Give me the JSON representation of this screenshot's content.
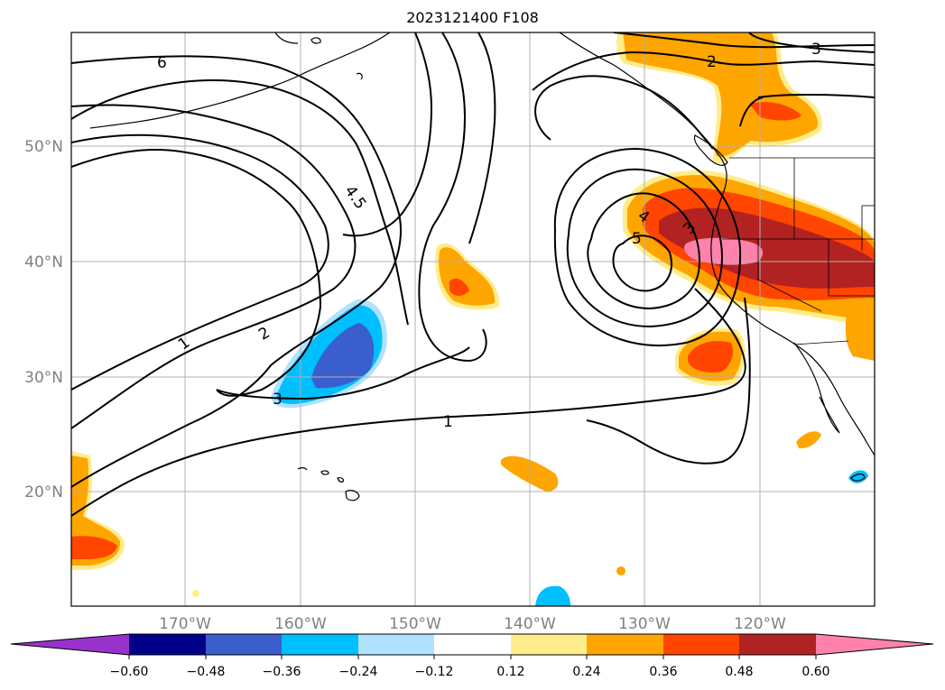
{
  "title": "2023121400 F108",
  "map": {
    "lat_labels": [
      "50°N",
      "40°N",
      "30°N",
      "20°N"
    ],
    "lon_labels": [
      "170°W",
      "160°W",
      "150°W",
      "140°W",
      "130°W",
      "120°W"
    ],
    "contour_labels": {
      "c6": "6",
      "c2_top": "2",
      "c3_top": "3",
      "c45": "4.5",
      "c4": "4",
      "c5": "5",
      "c3_mid": "3",
      "c1_left": "1",
      "c2_left": "2",
      "c3_bottom": "3",
      "c1_bottom": "1"
    },
    "colors": {
      "land_outline": "#000000",
      "contour": "#000000",
      "grid": "#b0b0b0"
    }
  },
  "colorbar": {
    "ticks": [
      "−0.60",
      "−0.48",
      "−0.36",
      "−0.24",
      "−0.12",
      "0.12",
      "0.24",
      "0.36",
      "0.48",
      "0.60"
    ],
    "colors": [
      "#9932cc",
      "#00008b",
      "#3a5fcd",
      "#00bfff",
      "#b0e2ff",
      "#ffffff",
      "#ffec8b",
      "#ffa500",
      "#ff4500",
      "#b22222",
      "#ff82ab"
    ]
  }
}
